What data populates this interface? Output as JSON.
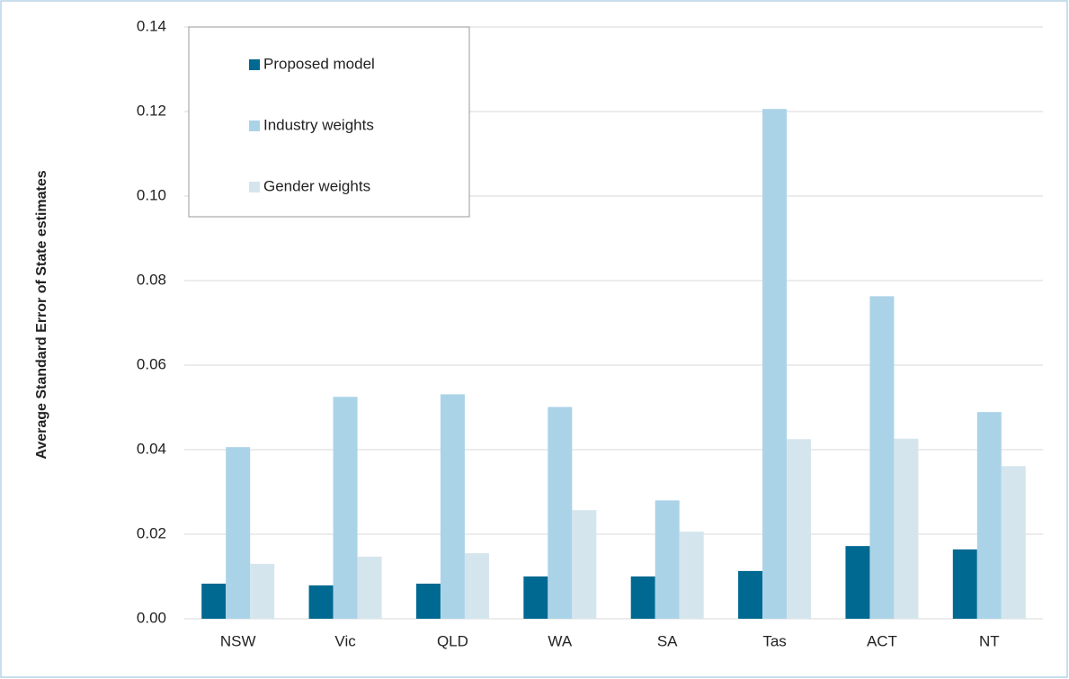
{
  "chart_data": {
    "type": "bar",
    "y_label": "Average Standard Error of State estimates",
    "categories": [
      "NSW",
      "Vic",
      "QLD",
      "WA",
      "SA",
      "Tas",
      "ACT",
      "NT"
    ],
    "series": [
      {
        "name": "Proposed model",
        "color": "#006991",
        "values": [
          0.0083,
          0.0079,
          0.0083,
          0.01,
          0.01,
          0.0113,
          0.0172,
          0.0164
        ]
      },
      {
        "name": "Industry weights",
        "color": "#abd3e8",
        "values": [
          0.0406,
          0.0525,
          0.0531,
          0.0501,
          0.028,
          0.1206,
          0.0763,
          0.0489
        ]
      },
      {
        "name": "Gender weights",
        "color": "#d5e5ee",
        "values": [
          0.013,
          0.0147,
          0.0155,
          0.0257,
          0.0206,
          0.0425,
          0.0426,
          0.0361
        ]
      }
    ],
    "ylim": [
      0,
      0.14
    ],
    "yticks": [
      {
        "value": 0,
        "label": "0.00"
      },
      {
        "value": 0.02,
        "label": "0.02"
      },
      {
        "value": 0.04,
        "label": "0.04"
      },
      {
        "value": 0.06,
        "label": "0.06"
      },
      {
        "value": 0.08,
        "label": "0.08"
      },
      {
        "value": 0.1,
        "label": "0.10"
      },
      {
        "value": 0.12,
        "label": "0.12"
      },
      {
        "value": 0.14,
        "label": "0.14"
      }
    ],
    "grid": true
  }
}
